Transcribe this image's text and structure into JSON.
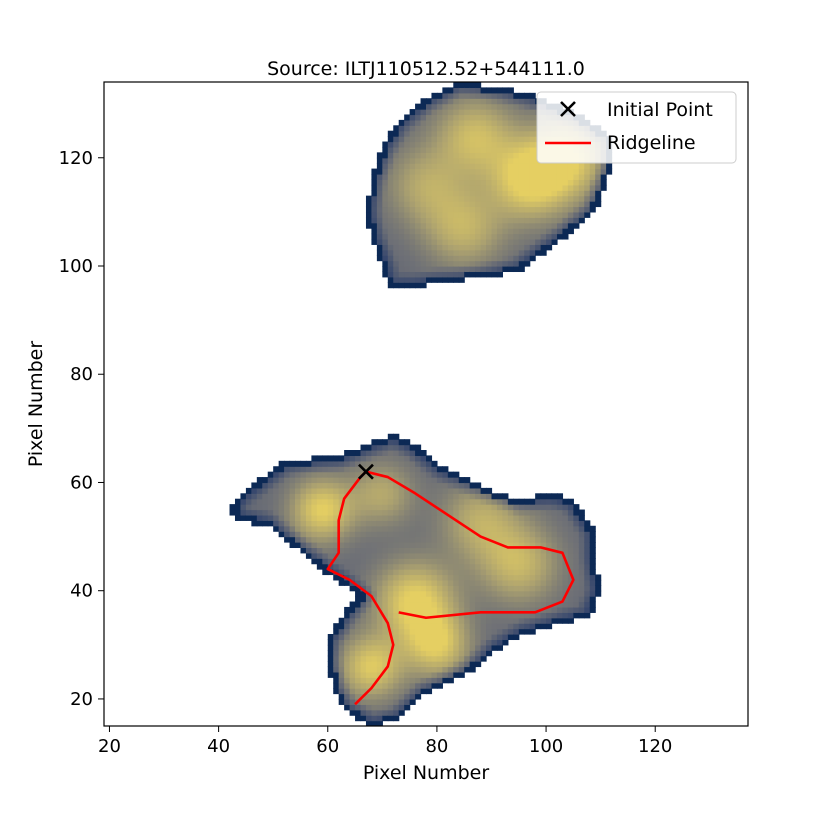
{
  "chart_data": {
    "type": "image_with_line_overlay",
    "title": "Source: ILTJ110512.52+544111.0",
    "xlabel": "Pixel Number",
    "ylabel": "Pixel Number",
    "xlim": [
      19,
      137
    ],
    "ylim": [
      15,
      134
    ],
    "xticks": [
      20,
      40,
      60,
      80,
      100,
      120
    ],
    "yticks": [
      20,
      40,
      60,
      80,
      100,
      120
    ],
    "grid": false,
    "legend_position": "top-right",
    "colormap": "cividis",
    "colors": {
      "ridgeline": "#ff0000",
      "initial_point": "#000000",
      "map_low": "#00204d",
      "map_mid": "#7c7b78",
      "map_high": "#e5cf62"
    },
    "series": [
      {
        "name": "Initial Point",
        "kind": "marker",
        "marker": "x",
        "x": [
          67
        ],
        "y": [
          62
        ]
      },
      {
        "name": "Ridgeline",
        "kind": "line",
        "x": [
          66,
          67,
          71,
          76,
          82,
          88,
          93,
          99,
          103,
          105,
          103,
          98,
          93,
          88,
          78,
          73
        ],
        "y": [
          61,
          62,
          61,
          58,
          54,
          50,
          48,
          48,
          47,
          42,
          38,
          36,
          36,
          36,
          35,
          36
        ]
      },
      {
        "kind": "line",
        "x": [
          66,
          63,
          62,
          62,
          60,
          64,
          68,
          71,
          72,
          71,
          68,
          65
        ],
        "y": [
          61,
          57,
          53,
          47,
          44,
          42,
          39,
          34,
          30,
          26,
          22,
          19
        ]
      }
    ],
    "emission_regions": [
      {
        "outline": [
          [
            84,
            134
          ],
          [
            92,
            133
          ],
          [
            97,
            132
          ],
          [
            106,
            128
          ],
          [
            112,
            124
          ],
          [
            112,
            118
          ],
          [
            109,
            110
          ],
          [
            103,
            105
          ],
          [
            95,
            99
          ],
          [
            89,
            98
          ],
          [
            81,
            97
          ],
          [
            76,
            96
          ],
          [
            71,
            96
          ],
          [
            70,
            100
          ],
          [
            68,
            105
          ],
          [
            67,
            110
          ],
          [
            68,
            116
          ],
          [
            70,
            122
          ],
          [
            73,
            127
          ],
          [
            78,
            131
          ]
        ],
        "peaks": [
          {
            "x": 97,
            "y": 116,
            "intensity": 1.0,
            "spread": 5
          },
          {
            "x": 104,
            "y": 120,
            "intensity": 0.85,
            "spread": 5
          },
          {
            "x": 87,
            "y": 124,
            "intensity": 0.75,
            "spread": 5
          },
          {
            "x": 85,
            "y": 107,
            "intensity": 0.65,
            "spread": 5
          },
          {
            "x": 78,
            "y": 115,
            "intensity": 0.55,
            "spread": 5
          }
        ]
      },
      {
        "outline": [
          [
            44,
            58
          ],
          [
            52,
            64
          ],
          [
            62,
            65
          ],
          [
            72,
            69
          ],
          [
            76,
            67
          ],
          [
            81,
            63
          ],
          [
            85,
            61
          ],
          [
            89,
            59
          ],
          [
            95,
            57
          ],
          [
            101,
            58
          ],
          [
            105,
            57
          ],
          [
            107,
            54
          ],
          [
            109,
            51
          ],
          [
            109,
            46
          ],
          [
            110,
            40
          ],
          [
            108,
            35
          ],
          [
            103,
            34
          ],
          [
            96,
            32
          ],
          [
            91,
            29
          ],
          [
            86,
            25
          ],
          [
            78,
            21
          ],
          [
            73,
            16
          ],
          [
            68,
            15
          ],
          [
            63,
            18
          ],
          [
            61,
            22
          ],
          [
            60,
            27
          ],
          [
            60,
            31
          ],
          [
            63,
            36
          ],
          [
            66,
            39
          ],
          [
            60,
            43
          ],
          [
            54,
            48
          ],
          [
            49,
            52
          ],
          [
            44,
            53
          ],
          [
            42,
            55
          ]
        ],
        "peaks": [
          {
            "x": 59,
            "y": 55,
            "intensity": 0.95,
            "spread": 4
          },
          {
            "x": 76,
            "y": 38,
            "intensity": 1.0,
            "spread": 5
          },
          {
            "x": 80,
            "y": 30,
            "intensity": 0.85,
            "spread": 4
          },
          {
            "x": 68,
            "y": 26,
            "intensity": 0.9,
            "spread": 4
          },
          {
            "x": 95,
            "y": 45,
            "intensity": 0.7,
            "spread": 5
          },
          {
            "x": 88,
            "y": 53,
            "intensity": 0.6,
            "spread": 5
          },
          {
            "x": 70,
            "y": 58,
            "intensity": 0.55,
            "spread": 4
          }
        ]
      }
    ],
    "legend_labels": [
      "Initial Point",
      "Ridgeline"
    ]
  }
}
